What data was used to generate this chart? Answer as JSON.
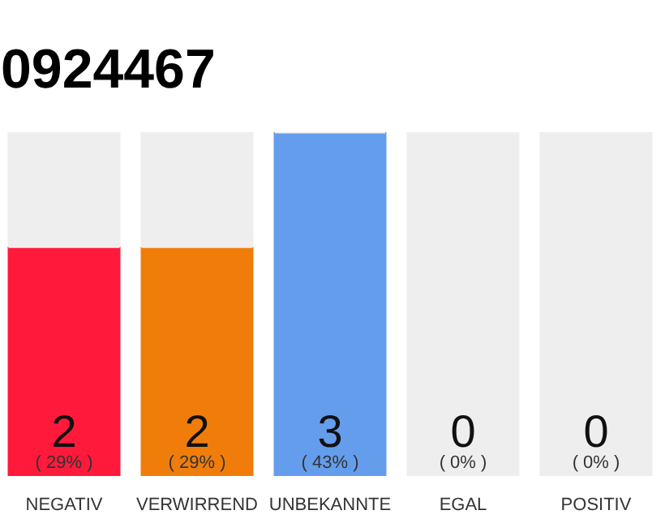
{
  "chart_data": {
    "type": "bar",
    "title": "0924467",
    "stacked": true,
    "categories": [
      "NEGATIV",
      "VERWIRREND",
      "UNBEKANNTE",
      "EGAL",
      "POSITIV"
    ],
    "series": [
      {
        "colors": [
          "#ff1a3c",
          "#f07d0a",
          "#659ded",
          "#8bc34a",
          "#2ea84a"
        ],
        "values": [
          2,
          2,
          3,
          0,
          0
        ],
        "value_labels": [
          "2\n( 29% )",
          "2\n( 29% )",
          "3\n( 43% )",
          "0\n( 0% )",
          "0\n( 0% )"
        ]
      },
      {
        "color": "#eeeeee",
        "values": [
          1,
          1,
          0,
          3,
          3
        ]
      }
    ],
    "grid": false
  }
}
